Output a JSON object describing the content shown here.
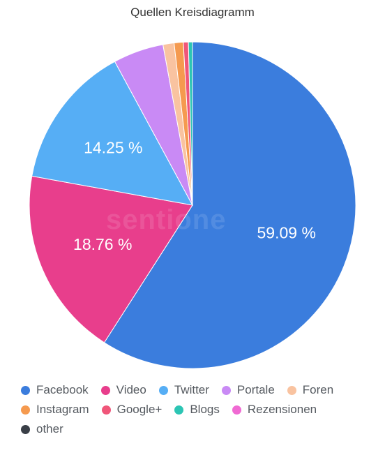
{
  "chart_data": {
    "type": "pie",
    "title": "Quellen Kreisdiagramm",
    "slices": [
      {
        "label": "Facebook",
        "value": 59.09,
        "color": "#3b7ddd",
        "data_label": "59.09 %"
      },
      {
        "label": "Video",
        "value": 18.76,
        "color": "#e83e8c",
        "data_label": "18.76 %"
      },
      {
        "label": "Twitter",
        "value": 14.25,
        "color": "#56aef5",
        "data_label": "14.25 %"
      },
      {
        "label": "Portale",
        "value": 5.0,
        "color": "#c98af5",
        "data_label": ""
      },
      {
        "label": "Foren",
        "value": 1.1,
        "color": "#f9c3a0",
        "data_label": ""
      },
      {
        "label": "Instagram",
        "value": 0.9,
        "color": "#f59a4f",
        "data_label": ""
      },
      {
        "label": "Google+",
        "value": 0.5,
        "color": "#f0567a",
        "data_label": ""
      },
      {
        "label": "Blogs",
        "value": 0.4,
        "color": "#2cc5b4",
        "data_label": ""
      },
      {
        "label": "Rezensionen",
        "value": 0.0,
        "color": "#f06ad3",
        "data_label": ""
      },
      {
        "label": "other",
        "value": 0.0,
        "color": "#3a3f47",
        "data_label": ""
      }
    ],
    "legend_position": "bottom",
    "watermark": "sentione"
  }
}
